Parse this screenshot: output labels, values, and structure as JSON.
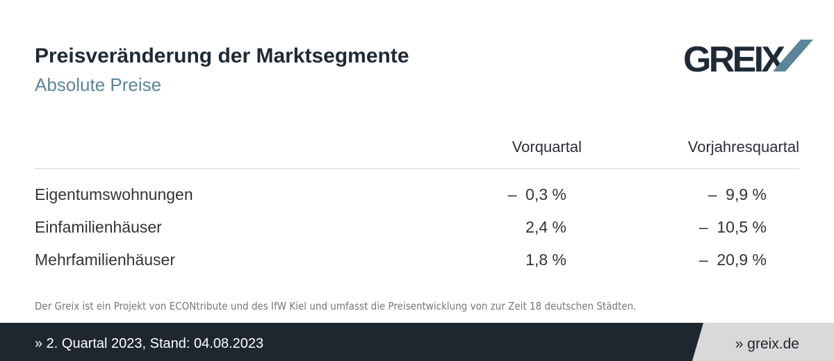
{
  "header": {
    "title": "Preisveränderung der Marktsegmente",
    "subtitle": "Absolute Preise",
    "logo": "GREIX"
  },
  "table": {
    "columns": [
      "Vorquartal",
      "Vorjahresquartal"
    ],
    "rows": [
      [
        "Eigentumswohnungen",
        "–  0,3 %",
        "–  9,9 %"
      ],
      [
        "Einfamilienhäuser",
        "2,4 %",
        "–  10,5 %"
      ],
      [
        "Mehrfamilienhäuser",
        "1,8 %",
        "–  20,9 %"
      ]
    ]
  },
  "footnote": "Der Greix ist ein Projekt von ECONtribute und des IfW Kiel und umfasst die Preisentwicklung von zur Zeit 18 deutschen Städten.",
  "footer": {
    "left": "» 2. Quartal 2023, Stand: 04.08.2023",
    "right": "» greix.de"
  }
}
